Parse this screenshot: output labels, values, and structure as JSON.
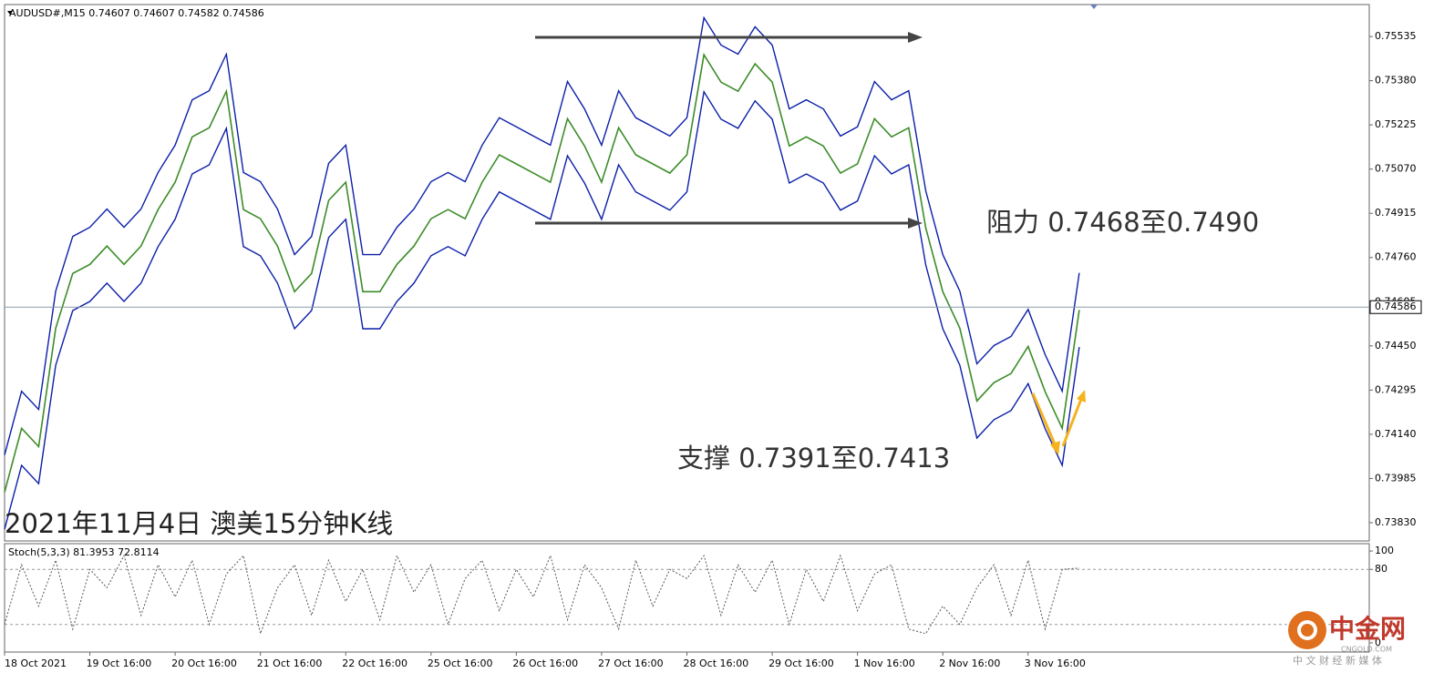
{
  "chart_data": [
    {
      "type": "line",
      "title": "AUDUSD#,M15  0.74607 0.74607 0.74582 0.74586",
      "annotations": [
        "阻力 0.7468至0.7490",
        "支撑 0.7391至0.7413",
        "2021年11月4日 澳美15分钟K线"
      ],
      "categories": [
        "18 Oct 2021",
        null,
        null,
        null,
        null,
        "19 Oct 16:00",
        null,
        null,
        null,
        null,
        "20 Oct 16:00",
        null,
        null,
        null,
        null,
        "21 Oct 16:00",
        null,
        null,
        null,
        null,
        "22 Oct 16:00",
        null,
        null,
        null,
        null,
        "25 Oct 16:00",
        null,
        null,
        null,
        null,
        "26 Oct 16:00",
        null,
        null,
        null,
        null,
        "27 Oct 16:00",
        null,
        null,
        null,
        null,
        "28 Oct 16:00",
        null,
        null,
        null,
        null,
        "29 Oct 16:00",
        null,
        null,
        null,
        null,
        "1 Nov 16:00",
        null,
        null,
        null,
        null,
        "2 Nov 16:00",
        null,
        null,
        null,
        null,
        "3 Nov 16:00",
        null,
        null,
        null,
        null,
        null,
        null,
        null,
        null,
        null,
        null,
        null,
        null,
        null,
        null,
        null,
        null,
        null,
        null,
        null
      ],
      "series": [
        {
          "color": "#3c8c28",
          "values": [
            0.73937,
            0.74161,
            0.74097,
            0.74512,
            0.74704,
            0.74736,
            0.748,
            0.74736,
            0.748,
            0.74928,
            0.75024,
            0.75183,
            0.75215,
            0.75343,
            0.74928,
            0.74896,
            0.748,
            0.7464,
            0.74704,
            0.7496,
            0.75024,
            0.7464,
            0.7464,
            0.74736,
            0.748,
            0.74896,
            0.74928,
            0.74896,
            0.75024,
            0.7512,
            0.75088,
            0.75056,
            0.75024,
            0.75247,
            0.75151,
            0.75024,
            0.75215,
            0.7512,
            0.75088,
            0.75056,
            0.7512,
            0.75471,
            0.75375,
            0.75343,
            0.75439,
            0.75375,
            0.75151,
            0.75183,
            0.75151,
            0.75056,
            0.75088,
            0.75247,
            0.75183,
            0.75215,
            0.74864,
            0.7464,
            0.74512,
            0.74257,
            0.74321,
            0.74353,
            0.74448,
            0.74289,
            0.74161,
            0.74576,
            null,
            null,
            null,
            null,
            null,
            null,
            null,
            null,
            null,
            null,
            null,
            null,
            null,
            null,
            null,
            null
          ]
        },
        {
          "color": "#0b1fa8",
          "values": [
            0.74067,
            0.74291,
            0.74227,
            0.74642,
            0.74834,
            0.74866,
            0.7493,
            0.74866,
            0.7493,
            0.75058,
            0.75154,
            0.75313,
            0.75345,
            0.75473,
            0.75058,
            0.75026,
            0.7493,
            0.7477,
            0.74834,
            0.7509,
            0.75154,
            0.7477,
            0.7477,
            0.74866,
            0.7493,
            0.75026,
            0.75058,
            0.75026,
            0.75154,
            0.7525,
            0.75218,
            0.75186,
            0.75154,
            0.75377,
            0.75281,
            0.75154,
            0.75345,
            0.7525,
            0.75218,
            0.75186,
            0.7525,
            0.75601,
            0.75505,
            0.75473,
            0.75569,
            0.75505,
            0.75281,
            0.75313,
            0.75281,
            0.75186,
            0.75218,
            0.75377,
            0.75313,
            0.75345,
            0.74994,
            0.7477,
            0.74642,
            0.74387,
            0.74451,
            0.74483,
            0.74578,
            0.74419,
            0.74291,
            0.74706,
            null,
            null,
            null,
            null,
            null,
            null,
            null,
            null,
            null,
            null,
            null,
            null,
            null,
            null,
            null,
            null
          ]
        },
        {
          "color": "#0b1fa8",
          "values": [
            0.73807,
            0.74031,
            0.73967,
            0.74382,
            0.74574,
            0.74606,
            0.7467,
            0.74606,
            0.7467,
            0.74798,
            0.74894,
            0.75053,
            0.75085,
            0.75213,
            0.74798,
            0.74766,
            0.7467,
            0.7451,
            0.74574,
            0.7483,
            0.74894,
            0.7451,
            0.7451,
            0.74606,
            0.7467,
            0.74766,
            0.74798,
            0.74766,
            0.74894,
            0.7499,
            0.74958,
            0.74926,
            0.74894,
            0.75117,
            0.75021,
            0.74894,
            0.75085,
            0.7499,
            0.74958,
            0.74926,
            0.7499,
            0.75341,
            0.75245,
            0.75213,
            0.75309,
            0.75245,
            0.75021,
            0.75053,
            0.75021,
            0.74926,
            0.74958,
            0.75117,
            0.75053,
            0.75085,
            0.74734,
            0.7451,
            0.74382,
            0.74127,
            0.74191,
            0.74223,
            0.74318,
            0.74159,
            0.74031,
            0.74446,
            null,
            null,
            null,
            null,
            null,
            null,
            null,
            null,
            null,
            null,
            null,
            null,
            null,
            null,
            null,
            null
          ]
        }
      ],
      "ylim": [
        0.73766,
        0.75647
      ],
      "yticks": [
        0.75535,
        {
          "value": 0.7538,
          "label": "0.75380"
        },
        0.75225,
        {
          "value": 0.7507,
          "label": "0.75070"
        },
        0.74915,
        {
          "value": 0.7476,
          "label": "0.74760"
        },
        0.74605,
        {
          "value": 0.7445,
          "label": "0.74450"
        },
        0.74295,
        {
          "value": 0.7414,
          "label": "0.74140"
        },
        0.73985,
        {
          "value": 0.7383,
          "label": "0.73830"
        }
      ],
      "last_price": 0.74586,
      "grid": false
    },
    {
      "type": "line",
      "title": "Stoch(5,3,3) 81.3953 72.8114",
      "series": [
        {
          "color": "#555555",
          "values": [
            20,
            85,
            40,
            90,
            15,
            80,
            60,
            95,
            30,
            85,
            50,
            90,
            20,
            75,
            95,
            10,
            60,
            85,
            30,
            90,
            45,
            80,
            25,
            95,
            55,
            85,
            20,
            70,
            90,
            35,
            80,
            50,
            95,
            25,
            85,
            60,
            15,
            90,
            40,
            80,
            70,
            95,
            30,
            85,
            55,
            90,
            20,
            80,
            45,
            95,
            35,
            75,
            85,
            15,
            10,
            40,
            20,
            60,
            85,
            30,
            90,
            15,
            80,
            81.3953,
            null,
            null,
            null,
            null,
            null,
            null,
            null,
            null,
            null,
            null,
            null,
            null,
            null,
            null,
            null,
            null
          ]
        }
      ],
      "ylim": [
        -10,
        108
      ],
      "yticks": [
        0,
        80,
        100
      ],
      "levels": [
        20,
        80
      ],
      "grid": false
    }
  ],
  "watermark": {
    "name": "中金网",
    "site": "CNGOLD.COM",
    "slogan": "中 文 财 经 新 媒 体"
  }
}
